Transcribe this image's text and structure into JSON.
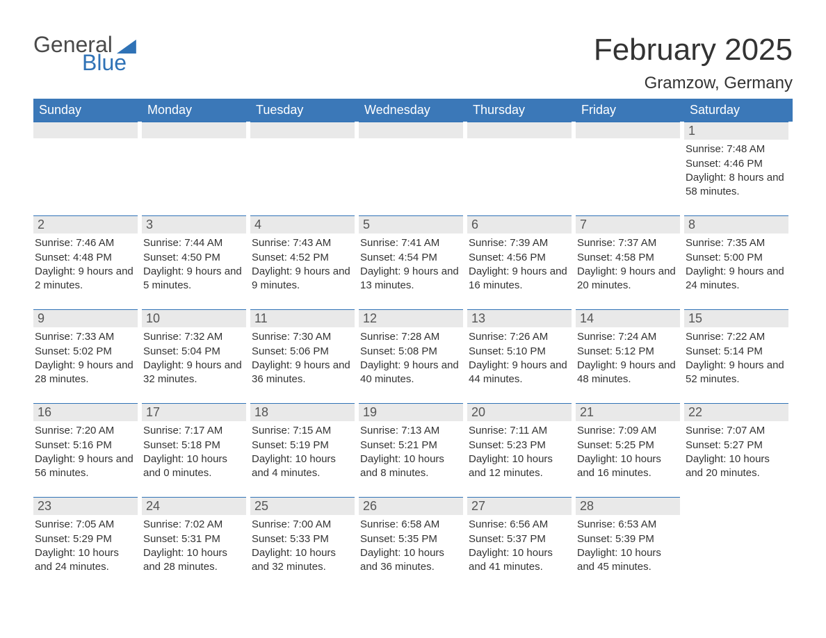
{
  "brand": {
    "general": "General",
    "blue": "Blue",
    "logo_color": "#2f72b6",
    "text_color": "#4a4a4a"
  },
  "title": {
    "month_year": "February 2025",
    "location": "Gramzow, Germany"
  },
  "colors": {
    "header_bg": "#3b78b8",
    "header_text": "#ffffff",
    "daynum_bg": "#e9e9e9",
    "daynum_border": "#2f72b6",
    "body_text": "#333333",
    "page_bg": "#ffffff"
  },
  "typography": {
    "month_title_fontsize": 44,
    "location_fontsize": 24,
    "dow_fontsize": 18,
    "daynum_fontsize": 18,
    "body_fontsize": 15,
    "logo_fontsize": 32
  },
  "days_of_week": [
    "Sunday",
    "Monday",
    "Tuesday",
    "Wednesday",
    "Thursday",
    "Friday",
    "Saturday"
  ],
  "weeks": [
    [
      {
        "n": "",
        "sunrise": "",
        "sunset": "",
        "daylight": ""
      },
      {
        "n": "",
        "sunrise": "",
        "sunset": "",
        "daylight": ""
      },
      {
        "n": "",
        "sunrise": "",
        "sunset": "",
        "daylight": ""
      },
      {
        "n": "",
        "sunrise": "",
        "sunset": "",
        "daylight": ""
      },
      {
        "n": "",
        "sunrise": "",
        "sunset": "",
        "daylight": ""
      },
      {
        "n": "",
        "sunrise": "",
        "sunset": "",
        "daylight": ""
      },
      {
        "n": "1",
        "sunrise": "Sunrise: 7:48 AM",
        "sunset": "Sunset: 4:46 PM",
        "daylight": "Daylight: 8 hours and 58 minutes."
      }
    ],
    [
      {
        "n": "2",
        "sunrise": "Sunrise: 7:46 AM",
        "sunset": "Sunset: 4:48 PM",
        "daylight": "Daylight: 9 hours and 2 minutes."
      },
      {
        "n": "3",
        "sunrise": "Sunrise: 7:44 AM",
        "sunset": "Sunset: 4:50 PM",
        "daylight": "Daylight: 9 hours and 5 minutes."
      },
      {
        "n": "4",
        "sunrise": "Sunrise: 7:43 AM",
        "sunset": "Sunset: 4:52 PM",
        "daylight": "Daylight: 9 hours and 9 minutes."
      },
      {
        "n": "5",
        "sunrise": "Sunrise: 7:41 AM",
        "sunset": "Sunset: 4:54 PM",
        "daylight": "Daylight: 9 hours and 13 minutes."
      },
      {
        "n": "6",
        "sunrise": "Sunrise: 7:39 AM",
        "sunset": "Sunset: 4:56 PM",
        "daylight": "Daylight: 9 hours and 16 minutes."
      },
      {
        "n": "7",
        "sunrise": "Sunrise: 7:37 AM",
        "sunset": "Sunset: 4:58 PM",
        "daylight": "Daylight: 9 hours and 20 minutes."
      },
      {
        "n": "8",
        "sunrise": "Sunrise: 7:35 AM",
        "sunset": "Sunset: 5:00 PM",
        "daylight": "Daylight: 9 hours and 24 minutes."
      }
    ],
    [
      {
        "n": "9",
        "sunrise": "Sunrise: 7:33 AM",
        "sunset": "Sunset: 5:02 PM",
        "daylight": "Daylight: 9 hours and 28 minutes."
      },
      {
        "n": "10",
        "sunrise": "Sunrise: 7:32 AM",
        "sunset": "Sunset: 5:04 PM",
        "daylight": "Daylight: 9 hours and 32 minutes."
      },
      {
        "n": "11",
        "sunrise": "Sunrise: 7:30 AM",
        "sunset": "Sunset: 5:06 PM",
        "daylight": "Daylight: 9 hours and 36 minutes."
      },
      {
        "n": "12",
        "sunrise": "Sunrise: 7:28 AM",
        "sunset": "Sunset: 5:08 PM",
        "daylight": "Daylight: 9 hours and 40 minutes."
      },
      {
        "n": "13",
        "sunrise": "Sunrise: 7:26 AM",
        "sunset": "Sunset: 5:10 PM",
        "daylight": "Daylight: 9 hours and 44 minutes."
      },
      {
        "n": "14",
        "sunrise": "Sunrise: 7:24 AM",
        "sunset": "Sunset: 5:12 PM",
        "daylight": "Daylight: 9 hours and 48 minutes."
      },
      {
        "n": "15",
        "sunrise": "Sunrise: 7:22 AM",
        "sunset": "Sunset: 5:14 PM",
        "daylight": "Daylight: 9 hours and 52 minutes."
      }
    ],
    [
      {
        "n": "16",
        "sunrise": "Sunrise: 7:20 AM",
        "sunset": "Sunset: 5:16 PM",
        "daylight": "Daylight: 9 hours and 56 minutes."
      },
      {
        "n": "17",
        "sunrise": "Sunrise: 7:17 AM",
        "sunset": "Sunset: 5:18 PM",
        "daylight": "Daylight: 10 hours and 0 minutes."
      },
      {
        "n": "18",
        "sunrise": "Sunrise: 7:15 AM",
        "sunset": "Sunset: 5:19 PM",
        "daylight": "Daylight: 10 hours and 4 minutes."
      },
      {
        "n": "19",
        "sunrise": "Sunrise: 7:13 AM",
        "sunset": "Sunset: 5:21 PM",
        "daylight": "Daylight: 10 hours and 8 minutes."
      },
      {
        "n": "20",
        "sunrise": "Sunrise: 7:11 AM",
        "sunset": "Sunset: 5:23 PM",
        "daylight": "Daylight: 10 hours and 12 minutes."
      },
      {
        "n": "21",
        "sunrise": "Sunrise: 7:09 AM",
        "sunset": "Sunset: 5:25 PM",
        "daylight": "Daylight: 10 hours and 16 minutes."
      },
      {
        "n": "22",
        "sunrise": "Sunrise: 7:07 AM",
        "sunset": "Sunset: 5:27 PM",
        "daylight": "Daylight: 10 hours and 20 minutes."
      }
    ],
    [
      {
        "n": "23",
        "sunrise": "Sunrise: 7:05 AM",
        "sunset": "Sunset: 5:29 PM",
        "daylight": "Daylight: 10 hours and 24 minutes."
      },
      {
        "n": "24",
        "sunrise": "Sunrise: 7:02 AM",
        "sunset": "Sunset: 5:31 PM",
        "daylight": "Daylight: 10 hours and 28 minutes."
      },
      {
        "n": "25",
        "sunrise": "Sunrise: 7:00 AM",
        "sunset": "Sunset: 5:33 PM",
        "daylight": "Daylight: 10 hours and 32 minutes."
      },
      {
        "n": "26",
        "sunrise": "Sunrise: 6:58 AM",
        "sunset": "Sunset: 5:35 PM",
        "daylight": "Daylight: 10 hours and 36 minutes."
      },
      {
        "n": "27",
        "sunrise": "Sunrise: 6:56 AM",
        "sunset": "Sunset: 5:37 PM",
        "daylight": "Daylight: 10 hours and 41 minutes."
      },
      {
        "n": "28",
        "sunrise": "Sunrise: 6:53 AM",
        "sunset": "Sunset: 5:39 PM",
        "daylight": "Daylight: 10 hours and 45 minutes."
      },
      {
        "n": "",
        "sunrise": "",
        "sunset": "",
        "daylight": ""
      }
    ]
  ]
}
